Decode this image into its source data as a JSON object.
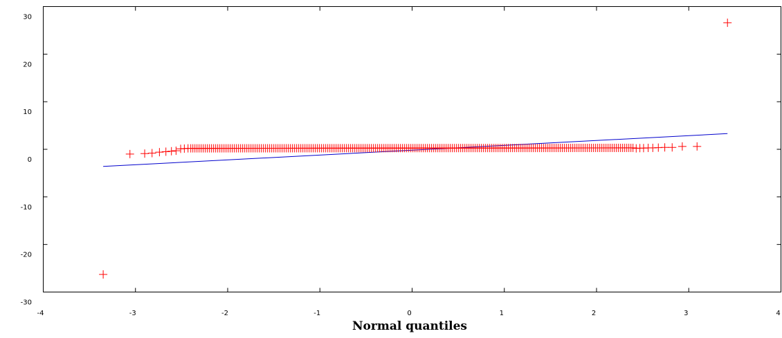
{
  "chart_data": {
    "type": "scatter",
    "title": "",
    "xlabel": "Normal quantiles",
    "ylabel": "",
    "xlim": [
      -4,
      4
    ],
    "ylim": [
      -30,
      30
    ],
    "xticks": [
      -4,
      -3,
      -2,
      -1,
      0,
      1,
      2,
      3,
      4
    ],
    "yticks": [
      -30,
      -20,
      -10,
      0,
      10,
      20,
      30
    ],
    "xtick_labels": [
      "-4",
      "-3",
      "-2",
      "-1",
      "0",
      "1",
      "2",
      "3",
      "4"
    ],
    "ytick_labels": [
      "-30",
      "-20",
      "-10",
      "0",
      "10",
      "20",
      "30"
    ],
    "grid": false,
    "legend": "none",
    "colors": {
      "points": "#ff0000",
      "fit_line": "#0000cc",
      "axes": "#000000"
    },
    "series": [
      {
        "type": "scatter",
        "marker": "+",
        "points": [
          [
            -3.35,
            -26.3
          ],
          [
            -3.06,
            -1.0
          ],
          [
            -2.9,
            -0.9
          ],
          [
            -2.82,
            -0.8
          ],
          [
            -2.74,
            -0.6
          ],
          [
            -2.67,
            -0.5
          ],
          [
            -2.61,
            -0.4
          ],
          [
            -2.56,
            -0.3
          ],
          [
            -2.51,
            0.1
          ],
          [
            -2.47,
            0.15
          ],
          [
            -2.43,
            0.2
          ],
          [
            2.43,
            0.2
          ],
          [
            2.47,
            0.25
          ],
          [
            2.51,
            0.25
          ],
          [
            2.56,
            0.3
          ],
          [
            2.61,
            0.3
          ],
          [
            2.67,
            0.35
          ],
          [
            2.74,
            0.4
          ],
          [
            2.82,
            0.4
          ],
          [
            2.93,
            0.6
          ],
          [
            3.09,
            0.6
          ],
          [
            3.42,
            26.6
          ]
        ],
        "dense_band": {
          "x_range": [
            -2.4,
            2.4
          ],
          "y_start": 0.2,
          "y_end": 0.3
        }
      },
      {
        "type": "line",
        "points": [
          [
            -3.35,
            -3.6
          ],
          [
            3.42,
            3.3
          ]
        ]
      }
    ]
  }
}
